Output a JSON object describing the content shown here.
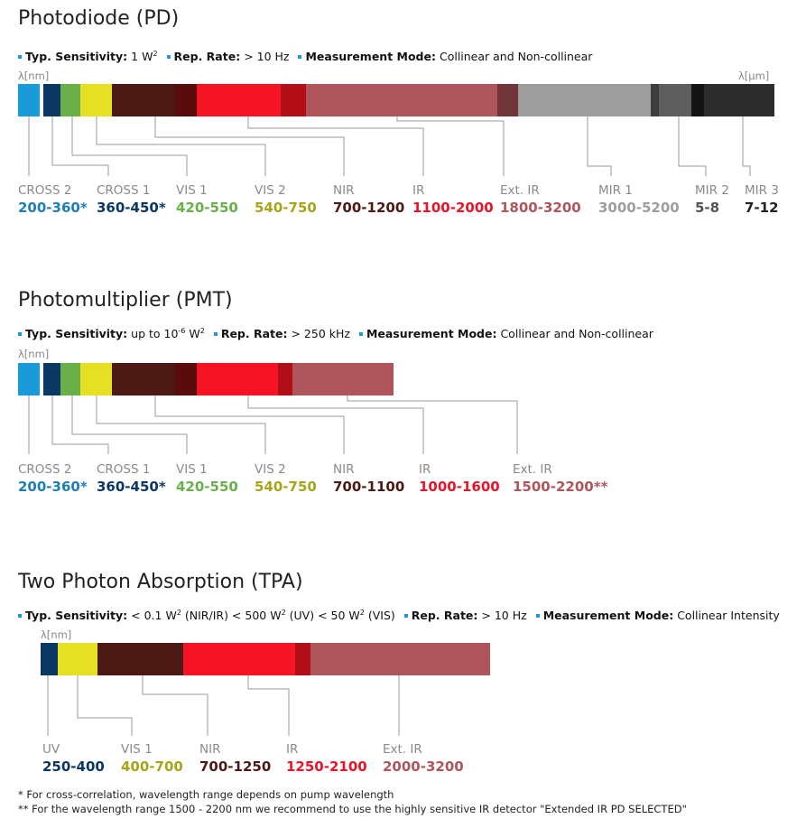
{
  "sections": [
    {
      "title": "Photodiode (PD)",
      "specs": [
        {
          "label": "Typ. Sensitivity:",
          "value": "1 W",
          "sup": "2"
        },
        {
          "label": "Rep. Rate:",
          "value": "> 10 Hz"
        },
        {
          "label": "Measurement Mode:",
          "value": "Collinear and Non-collinear"
        }
      ],
      "unit_left": "λ[nm]",
      "unit_right": "λ[μm]",
      "segments": [
        {
          "color": "#1a9bd7"
        },
        {
          "color": "#ffffff"
        },
        {
          "color": "#0b3863"
        },
        {
          "color": "#69b04b"
        },
        {
          "color": "#e6e024"
        },
        {
          "color": "#4c1915"
        },
        {
          "color": "#5a0c0c"
        },
        {
          "color": "#f51424"
        },
        {
          "color": "#b10e18"
        },
        {
          "color": "#ae565b"
        },
        {
          "color": "#6f3539"
        },
        {
          "color": "#9e9e9e"
        },
        {
          "color": "#3d3d3d"
        },
        {
          "color": "#5e5e5e"
        },
        {
          "color": "#141414"
        },
        {
          "color": "#2c2c2c"
        }
      ],
      "labels": [
        {
          "name": "CROSS 2",
          "range": "200-360*",
          "color": "#1e7fb8"
        },
        {
          "name": "CROSS 1",
          "range": "360-450*",
          "color": "#0b3863"
        },
        {
          "name": "VIS 1",
          "range": "420-550",
          "color": "#69b04b"
        },
        {
          "name": "VIS 2",
          "range": "540-750",
          "color": "#a8a41a"
        },
        {
          "name": "NIR",
          "range": "700-1200",
          "color": "#4c1915"
        },
        {
          "name": "IR",
          "range": "1100-2000",
          "color": "#e8152a"
        },
        {
          "name": "Ext. IR",
          "range": "1800-3200",
          "color": "#ae565b"
        },
        {
          "name": "MIR 1",
          "range": "3000-5200",
          "color": "#9e9e9e"
        },
        {
          "name": "MIR 2",
          "range": "5-8",
          "color": "#555555"
        },
        {
          "name": "MIR 3",
          "range": "7-12",
          "color": "#222222"
        }
      ]
    },
    {
      "title": "Photomultiplier (PMT)",
      "specs": [
        {
          "label": "Typ. Sensitivity:",
          "value": "up to 10",
          "sup": "-6",
          "value2": " W",
          "sup2": "2"
        },
        {
          "label": "Rep. Rate:",
          "value": "> 250 kHz"
        },
        {
          "label": "Measurement Mode:",
          "value": "Collinear and Non-collinear"
        }
      ],
      "unit_left": "λ[nm]",
      "segments": [
        {
          "color": "#1a9bd7"
        },
        {
          "color": "#ffffff"
        },
        {
          "color": "#0b3863"
        },
        {
          "color": "#69b04b"
        },
        {
          "color": "#e6e024"
        },
        {
          "color": "#4c1915"
        },
        {
          "color": "#5a0c0c"
        },
        {
          "color": "#f51424"
        },
        {
          "color": "#b10e18"
        },
        {
          "color": "#ae565b"
        }
      ],
      "labels": [
        {
          "name": "CROSS 2",
          "range": "200-360*",
          "color": "#1e7fb8"
        },
        {
          "name": "CROSS 1",
          "range": "360-450*",
          "color": "#0b3863"
        },
        {
          "name": "VIS 1",
          "range": "420-550",
          "color": "#69b04b"
        },
        {
          "name": "VIS 2",
          "range": "540-750",
          "color": "#a8a41a"
        },
        {
          "name": "NIR",
          "range": "700-1100",
          "color": "#4c1915"
        },
        {
          "name": "IR",
          "range": "1000-1600",
          "color": "#e8152a"
        },
        {
          "name": "Ext. IR",
          "range": "1500-2200**",
          "color": "#ae565b"
        }
      ]
    },
    {
      "title": "Two Photon Absorption (TPA)",
      "specs": [
        {
          "label": "Typ. Sensitivity:",
          "value": "< 0.1 W",
          "sup": "2",
          "value2": "  (NIR/IR) < 500 W",
          "sup2": "2",
          "value3": " (UV) < 50 W",
          "sup3": "2",
          "value4": " (VIS)"
        },
        {
          "label": "Rep. Rate:",
          "value": "> 10 Hz"
        },
        {
          "label": "Measurement Mode:",
          "value": "Collinear Intensity"
        }
      ],
      "unit_left": "λ[nm]",
      "segments": [
        {
          "color": "#0b3863"
        },
        {
          "color": "#e6e024"
        },
        {
          "color": "#4c1915"
        },
        {
          "color": "#f51424"
        },
        {
          "color": "#b10e18"
        },
        {
          "color": "#ae565b"
        }
      ],
      "labels": [
        {
          "name": "UV",
          "range": "250-400",
          "color": "#0b3863"
        },
        {
          "name": "VIS 1",
          "range": "400-700",
          "color": "#a8a41a"
        },
        {
          "name": "NIR",
          "range": "700-1250",
          "color": "#4c1915"
        },
        {
          "name": "IR",
          "range": "1250-2100",
          "color": "#e8152a"
        },
        {
          "name": "Ext. IR",
          "range": "2000-3200",
          "color": "#ae565b"
        }
      ]
    }
  ],
  "footnotes": [
    "* For cross-correlation, wavelength range depends on pump wavelength",
    "** For the wavelength range 1500 - 2200 nm we recommend to use the highly sensitive IR detector \"Extended IR PD SELECTED\""
  ]
}
